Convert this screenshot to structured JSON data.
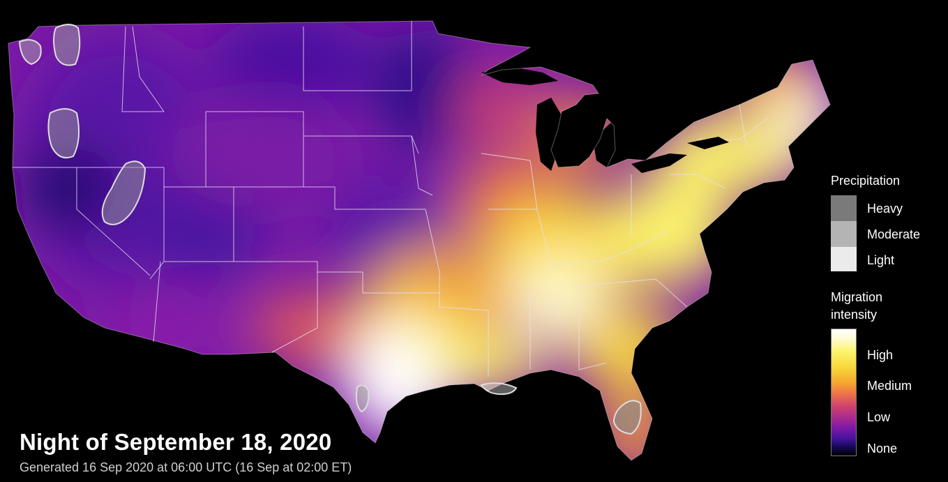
{
  "title": "Night of September 18, 2020",
  "subtitle": "Generated 16 Sep 2020 at 06:00 UTC (16 Sep at 02:00 ET)",
  "legend": {
    "precipitation": {
      "heading": "Precipitation",
      "items": [
        {
          "label": "Heavy",
          "color": "#7a7a7a"
        },
        {
          "label": "Moderate",
          "color": "#b4b4b4"
        },
        {
          "label": "Light",
          "color": "#ebebeb"
        }
      ]
    },
    "migration": {
      "heading_line1": "Migration",
      "heading_line2": "intensity",
      "levels": [
        "High",
        "Medium",
        "Low",
        "None"
      ],
      "colors": [
        "#ffffff",
        "#f8d93c",
        "#ea6f4b",
        "#a92a8e",
        "#42139a",
        "#000000"
      ]
    }
  },
  "colors": {
    "background": "#000000",
    "state_border": "#e8e0f0",
    "low": "#5a12a8",
    "medium": "#f3a33a",
    "high": "#ffffff"
  }
}
